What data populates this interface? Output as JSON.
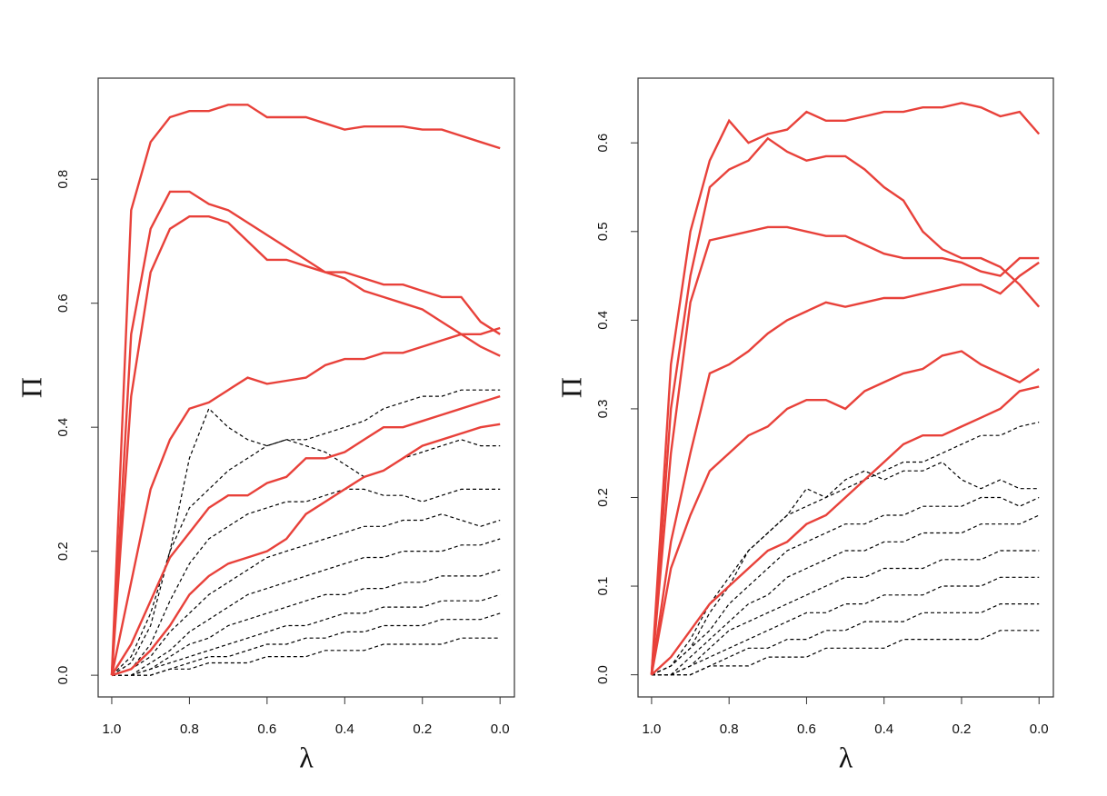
{
  "chart_data": [
    {
      "type": "line",
      "xlabel": "λ",
      "ylabel": "Π",
      "x": [
        1,
        0.95,
        0.9,
        0.85,
        0.8,
        0.75,
        0.7,
        0.65,
        0.6,
        0.55,
        0.5,
        0.45,
        0.4,
        0.35,
        0.3,
        0.25,
        0.2,
        0.15,
        0.1,
        0.05,
        0
      ],
      "xlim": [
        1.035,
        -0.037
      ],
      "ylim": [
        -0.035,
        0.963
      ],
      "xticks": [
        {
          "value": 1,
          "label": "1.0"
        },
        0.8,
        0.6,
        0.4,
        0.2,
        {
          "value": 0,
          "label": "0.0"
        }
      ],
      "yticks": [
        {
          "value": 0,
          "label": "0.0"
        },
        0.2,
        0.4,
        0.6,
        0.8
      ],
      "grid": false,
      "series": [
        {
          "color": "#000000",
          "linestyle": "dashed",
          "values": [
            0,
            0.02,
            0.08,
            0.2,
            0.35,
            0.43,
            0.4,
            0.38,
            0.37,
            0.38,
            0.37,
            0.36,
            0.34,
            0.32,
            0.33,
            0.35,
            0.36,
            0.37,
            0.38,
            0.37,
            0.37
          ]
        },
        {
          "color": "#000000",
          "linestyle": "dashed",
          "values": [
            0,
            0.03,
            0.1,
            0.2,
            0.27,
            0.3,
            0.33,
            0.35,
            0.37,
            0.38,
            0.38,
            0.39,
            0.4,
            0.41,
            0.43,
            0.44,
            0.45,
            0.45,
            0.46,
            0.46,
            0.46
          ]
        },
        {
          "color": "#000000",
          "linestyle": "dashed",
          "values": [
            0,
            0.01,
            0.05,
            0.12,
            0.18,
            0.22,
            0.24,
            0.26,
            0.27,
            0.28,
            0.28,
            0.29,
            0.3,
            0.3,
            0.29,
            0.29,
            0.28,
            0.29,
            0.3,
            0.3,
            0.3
          ]
        },
        {
          "color": "#000000",
          "linestyle": "dashed",
          "values": [
            0,
            0.01,
            0.03,
            0.07,
            0.1,
            0.13,
            0.15,
            0.17,
            0.19,
            0.2,
            0.21,
            0.22,
            0.23,
            0.24,
            0.24,
            0.25,
            0.25,
            0.26,
            0.25,
            0.24,
            0.25
          ]
        },
        {
          "color": "#000000",
          "linestyle": "dashed",
          "values": [
            0,
            0,
            0.02,
            0.04,
            0.07,
            0.09,
            0.11,
            0.13,
            0.14,
            0.15,
            0.16,
            0.17,
            0.18,
            0.19,
            0.19,
            0.2,
            0.2,
            0.2,
            0.21,
            0.21,
            0.22
          ]
        },
        {
          "color": "#000000",
          "linestyle": "dashed",
          "values": [
            0,
            0,
            0.01,
            0.03,
            0.05,
            0.06,
            0.08,
            0.09,
            0.1,
            0.11,
            0.12,
            0.13,
            0.13,
            0.14,
            0.14,
            0.15,
            0.15,
            0.16,
            0.16,
            0.16,
            0.17
          ]
        },
        {
          "color": "#000000",
          "linestyle": "dashed",
          "values": [
            0,
            0,
            0.01,
            0.02,
            0.03,
            0.04,
            0.05,
            0.06,
            0.07,
            0.08,
            0.08,
            0.09,
            0.1,
            0.1,
            0.11,
            0.11,
            0.11,
            0.12,
            0.12,
            0.12,
            0.13
          ]
        },
        {
          "color": "#000000",
          "linestyle": "dashed",
          "values": [
            0,
            0,
            0,
            0.01,
            0.02,
            0.03,
            0.03,
            0.04,
            0.05,
            0.05,
            0.06,
            0.06,
            0.07,
            0.07,
            0.08,
            0.08,
            0.08,
            0.09,
            0.09,
            0.09,
            0.1
          ]
        },
        {
          "color": "#000000",
          "linestyle": "dashed",
          "values": [
            0,
            0,
            0,
            0.01,
            0.01,
            0.02,
            0.02,
            0.02,
            0.03,
            0.03,
            0.03,
            0.04,
            0.04,
            0.04,
            0.05,
            0.05,
            0.05,
            0.05,
            0.06,
            0.06,
            0.06
          ]
        },
        {
          "color": "#e8413a",
          "linestyle": "solid",
          "values": [
            0,
            0.75,
            0.86,
            0.9,
            0.91,
            0.91,
            0.92,
            0.92,
            0.9,
            0.9,
            0.9,
            0.89,
            0.88,
            0.885,
            0.885,
            0.885,
            0.88,
            0.88,
            0.87,
            0.86,
            0.85
          ]
        },
        {
          "color": "#e8413a",
          "linestyle": "solid",
          "values": [
            0,
            0.55,
            0.72,
            0.78,
            0.78,
            0.76,
            0.75,
            0.73,
            0.71,
            0.69,
            0.67,
            0.65,
            0.65,
            0.64,
            0.63,
            0.63,
            0.62,
            0.61,
            0.61,
            0.57,
            0.55
          ]
        },
        {
          "color": "#e8413a",
          "linestyle": "solid",
          "values": [
            0,
            0.45,
            0.65,
            0.72,
            0.74,
            0.74,
            0.73,
            0.7,
            0.67,
            0.67,
            0.66,
            0.65,
            0.64,
            0.62,
            0.61,
            0.6,
            0.59,
            0.57,
            0.55,
            0.55,
            0.56
          ]
        },
        {
          "color": "#e8413a",
          "linestyle": "solid",
          "values": [
            0,
            0.15,
            0.3,
            0.38,
            0.43,
            0.44,
            0.46,
            0.48,
            0.47,
            0.475,
            0.48,
            0.5,
            0.51,
            0.51,
            0.52,
            0.52,
            0.53,
            0.54,
            0.55,
            0.53,
            0.515
          ]
        },
        {
          "color": "#e8413a",
          "linestyle": "solid",
          "values": [
            0,
            0.05,
            0.12,
            0.19,
            0.23,
            0.27,
            0.29,
            0.29,
            0.31,
            0.32,
            0.35,
            0.35,
            0.36,
            0.38,
            0.4,
            0.4,
            0.41,
            0.42,
            0.43,
            0.44,
            0.45
          ]
        },
        {
          "color": "#e8413a",
          "linestyle": "solid",
          "values": [
            0,
            0.01,
            0.04,
            0.08,
            0.13,
            0.16,
            0.18,
            0.19,
            0.2,
            0.22,
            0.26,
            0.28,
            0.3,
            0.32,
            0.33,
            0.35,
            0.37,
            0.38,
            0.39,
            0.4,
            0.405
          ]
        }
      ]
    },
    {
      "type": "line",
      "xlabel": "λ",
      "ylabel": "Π",
      "x": [
        1,
        0.95,
        0.9,
        0.85,
        0.8,
        0.75,
        0.7,
        0.65,
        0.6,
        0.55,
        0.5,
        0.45,
        0.4,
        0.35,
        0.3,
        0.25,
        0.2,
        0.15,
        0.1,
        0.05,
        0
      ],
      "xlim": [
        1.035,
        -0.037
      ],
      "ylim": [
        -0.025,
        0.673
      ],
      "xticks": [
        {
          "value": 1,
          "label": "1.0"
        },
        0.8,
        0.6,
        0.4,
        0.2,
        {
          "value": 0,
          "label": "0.0"
        }
      ],
      "yticks": [
        {
          "value": 0,
          "label": "0.0"
        },
        0.1,
        0.2,
        0.3,
        0.4,
        0.5,
        0.6
      ],
      "grid": false,
      "series": [
        {
          "color": "#000000",
          "linestyle": "dashed",
          "values": [
            0,
            0.01,
            0.04,
            0.08,
            0.11,
            0.14,
            0.16,
            0.18,
            0.19,
            0.2,
            0.21,
            0.22,
            0.23,
            0.24,
            0.24,
            0.25,
            0.26,
            0.27,
            0.27,
            0.28,
            0.285
          ]
        },
        {
          "color": "#000000",
          "linestyle": "dashed",
          "values": [
            0,
            0.01,
            0.03,
            0.07,
            0.1,
            0.14,
            0.16,
            0.18,
            0.21,
            0.2,
            0.22,
            0.23,
            0.22,
            0.23,
            0.23,
            0.24,
            0.22,
            0.21,
            0.22,
            0.21,
            0.21
          ]
        },
        {
          "color": "#000000",
          "linestyle": "dashed",
          "values": [
            0,
            0.01,
            0.03,
            0.05,
            0.08,
            0.1,
            0.12,
            0.14,
            0.15,
            0.16,
            0.17,
            0.17,
            0.18,
            0.18,
            0.19,
            0.19,
            0.19,
            0.2,
            0.2,
            0.19,
            0.2
          ]
        },
        {
          "color": "#000000",
          "linestyle": "dashed",
          "values": [
            0,
            0,
            0.02,
            0.04,
            0.06,
            0.08,
            0.09,
            0.11,
            0.12,
            0.13,
            0.14,
            0.14,
            0.15,
            0.15,
            0.16,
            0.16,
            0.16,
            0.17,
            0.17,
            0.17,
            0.18
          ]
        },
        {
          "color": "#000000",
          "linestyle": "dashed",
          "values": [
            0,
            0,
            0.01,
            0.03,
            0.05,
            0.06,
            0.07,
            0.08,
            0.09,
            0.1,
            0.11,
            0.11,
            0.12,
            0.12,
            0.12,
            0.13,
            0.13,
            0.13,
            0.14,
            0.14,
            0.14
          ]
        },
        {
          "color": "#000000",
          "linestyle": "dashed",
          "values": [
            0,
            0,
            0.01,
            0.02,
            0.03,
            0.04,
            0.05,
            0.06,
            0.07,
            0.07,
            0.08,
            0.08,
            0.09,
            0.09,
            0.09,
            0.1,
            0.1,
            0.1,
            0.11,
            0.11,
            0.11
          ]
        },
        {
          "color": "#000000",
          "linestyle": "dashed",
          "values": [
            0,
            0,
            0,
            0.01,
            0.02,
            0.03,
            0.03,
            0.04,
            0.04,
            0.05,
            0.05,
            0.06,
            0.06,
            0.06,
            0.07,
            0.07,
            0.07,
            0.07,
            0.08,
            0.08,
            0.08
          ]
        },
        {
          "color": "#000000",
          "linestyle": "dashed",
          "values": [
            0,
            0,
            0,
            0.01,
            0.01,
            0.01,
            0.02,
            0.02,
            0.02,
            0.03,
            0.03,
            0.03,
            0.03,
            0.04,
            0.04,
            0.04,
            0.04,
            0.04,
            0.05,
            0.05,
            0.05
          ]
        },
        {
          "color": "#e8413a",
          "linestyle": "solid",
          "values": [
            0,
            0.35,
            0.5,
            0.58,
            0.625,
            0.6,
            0.61,
            0.615,
            0.635,
            0.625,
            0.625,
            0.63,
            0.635,
            0.635,
            0.64,
            0.64,
            0.645,
            0.64,
            0.63,
            0.635,
            0.61
          ]
        },
        {
          "color": "#e8413a",
          "linestyle": "solid",
          "values": [
            0,
            0.3,
            0.45,
            0.55,
            0.57,
            0.58,
            0.605,
            0.59,
            0.58,
            0.585,
            0.585,
            0.57,
            0.55,
            0.535,
            0.5,
            0.48,
            0.47,
            0.47,
            0.46,
            0.44,
            0.415
          ]
        },
        {
          "color": "#e8413a",
          "linestyle": "solid",
          "values": [
            0,
            0.25,
            0.42,
            0.49,
            0.495,
            0.5,
            0.505,
            0.505,
            0.5,
            0.495,
            0.495,
            0.485,
            0.475,
            0.47,
            0.47,
            0.47,
            0.465,
            0.455,
            0.45,
            0.47,
            0.47
          ]
        },
        {
          "color": "#e8413a",
          "linestyle": "solid",
          "values": [
            0,
            0.15,
            0.25,
            0.34,
            0.35,
            0.365,
            0.385,
            0.4,
            0.41,
            0.42,
            0.415,
            0.42,
            0.425,
            0.425,
            0.43,
            0.435,
            0.44,
            0.44,
            0.43,
            0.45,
            0.465
          ]
        },
        {
          "color": "#e8413a",
          "linestyle": "solid",
          "values": [
            0,
            0.12,
            0.18,
            0.23,
            0.25,
            0.27,
            0.28,
            0.3,
            0.31,
            0.31,
            0.3,
            0.32,
            0.33,
            0.34,
            0.345,
            0.36,
            0.365,
            0.35,
            0.34,
            0.33,
            0.345
          ]
        },
        {
          "color": "#e8413a",
          "linestyle": "solid",
          "values": [
            0,
            0.02,
            0.05,
            0.08,
            0.1,
            0.12,
            0.14,
            0.15,
            0.17,
            0.18,
            0.2,
            0.22,
            0.24,
            0.26,
            0.27,
            0.27,
            0.28,
            0.29,
            0.3,
            0.32,
            0.325
          ]
        }
      ]
    }
  ]
}
